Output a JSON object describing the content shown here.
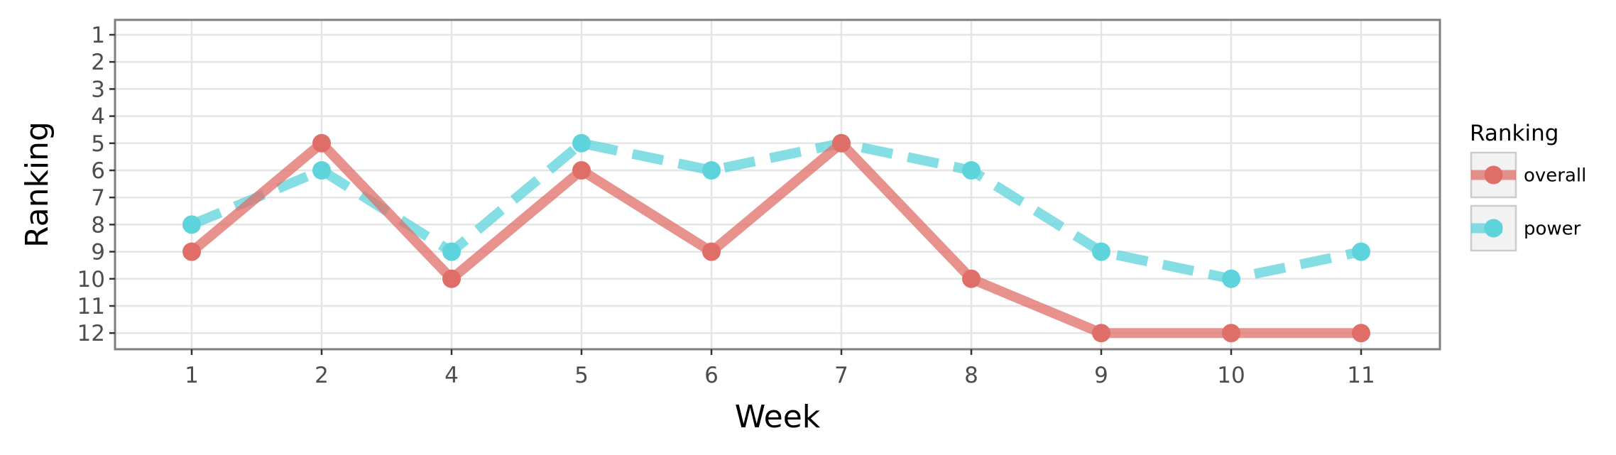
{
  "chart_data": {
    "type": "line",
    "xlabel": "Week",
    "ylabel": "Ranking",
    "x_categories": [
      "1",
      "2",
      "4",
      "5",
      "6",
      "7",
      "8",
      "9",
      "10",
      "11"
    ],
    "y_ticks": [
      "1",
      "2",
      "3",
      "4",
      "5",
      "6",
      "7",
      "8",
      "9",
      "10",
      "11",
      "12"
    ],
    "ylim": [
      1,
      12
    ],
    "y_reversed": true,
    "grid": true,
    "legend_title": "Ranking",
    "legend_position": "right",
    "series": [
      {
        "name": "overall",
        "color": "#E06E68",
        "style": "solid",
        "values": [
          9,
          5,
          10,
          6,
          9,
          5,
          10,
          12,
          12,
          12
        ]
      },
      {
        "name": "power",
        "color": "#5DD3DC",
        "style": "dashed",
        "values": [
          8,
          6,
          9,
          5,
          6,
          5,
          6,
          9,
          10,
          9
        ]
      }
    ]
  }
}
